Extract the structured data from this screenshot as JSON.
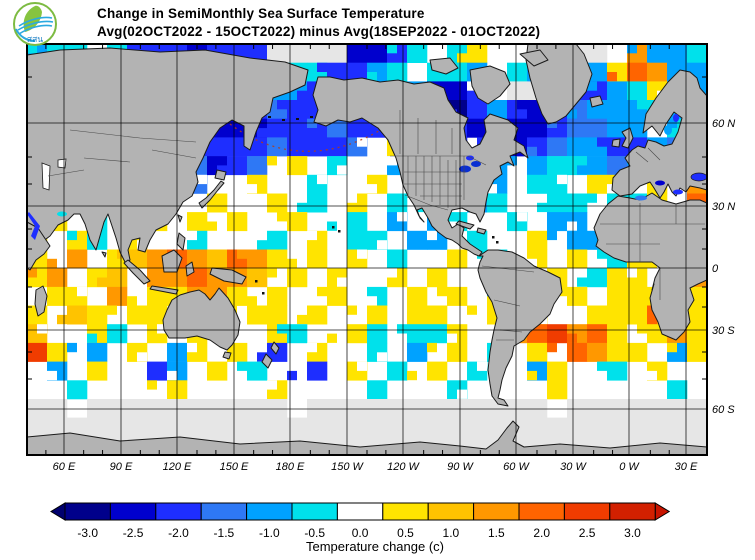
{
  "header": {
    "title_line1": "Change in SemiMonthly Sea Surface Temperature",
    "title_line2": "Avg(02OCT2022 - 15OCT2022) minus Avg(18SEP2022 - 01OCT2022)",
    "logo_text": "สสน"
  },
  "axes": {
    "lat_labels": [
      "60 N",
      "30 N",
      "0",
      "30 S",
      "60 S"
    ],
    "lon_labels": [
      "60 E",
      "90 E",
      "120 E",
      "150 E",
      "180 E",
      "150 W",
      "120 W",
      "90 W",
      "60 W",
      "30 W",
      "0 W",
      "30 E"
    ]
  },
  "colorbar": {
    "tick_labels": [
      "-3.0",
      "-2.5",
      "-2.0",
      "-1.5",
      "-1.0",
      "-0.5",
      "0.0",
      "0.5",
      "1.0",
      "1.5",
      "2.0",
      "2.5",
      "3.0"
    ],
    "caption": "Temperature change  (c)",
    "segment_colors": [
      "#00008B",
      "#0000CD",
      "#1E2EFF",
      "#2E78F5",
      "#00A2FF",
      "#00E1EB",
      "#FFFFFF",
      "#FFE400",
      "#FFC300",
      "#FF9800",
      "#FF6400",
      "#F03C00",
      "#D22000"
    ],
    "left_arrow_color": "#00006E",
    "right_arrow_color": "#C81400"
  },
  "colors": {
    "land": "#B3B3B3",
    "coastline": "#1A1A1A",
    "ocean": "#FFFFFF",
    "polar_no_data": "#E6E6E6",
    "map_border": "#000000",
    "logo_green": "#7DBB42",
    "logo_blue": "#2BA9E0",
    "logo_text_color": "#1B7FC4"
  },
  "chart_data": {
    "type": "heatmap",
    "title": "Change in SemiMonthly Sea Surface Temperature",
    "subtitle": "Avg(02OCT2022 - 15OCT2022) minus Avg(18SEP2022 - 01OCT2022)",
    "units_label": "Temperature change  (c)",
    "projection": "Global cylindrical (Mercator-like), longitude from ~40E eastward 360 degrees, latitude ~75N to ~70S",
    "x_ticks": [
      "60 E",
      "90 E",
      "120 E",
      "150 E",
      "180 E",
      "150 W",
      "120 W",
      "90 W",
      "60 W",
      "30 W",
      "0 W",
      "30 E"
    ],
    "y_ticks": [
      "60 N",
      "30 N",
      "0",
      "30 S",
      "60 S"
    ],
    "colorbar_levels_c": [
      -3.0,
      -2.5,
      -2.0,
      -1.5,
      -1.0,
      -0.5,
      0.0,
      0.5,
      1.0,
      1.5,
      2.0,
      2.5,
      3.0
    ],
    "colorbar_colors": [
      "#00008B",
      "#0000CD",
      "#1E2EFF",
      "#2E78F5",
      "#00A2FF",
      "#00E1EB",
      "#FFFFFF",
      "#FFE400",
      "#FFC300",
      "#FF9800",
      "#FF6400",
      "#F03C00",
      "#D22000"
    ],
    "grid": {
      "cols": 34,
      "rows_count": 22,
      "encoding": "each character is one cell of the anomaly field, west-to-east from ~40E, north-to-south from ~75N; value v is temperature change in deg C; g = no data / ice-covered polar ocean",
      "palette": {
        "0": {
          "c": "#00008B",
          "v": -3.0
        },
        "1": {
          "c": "#0000CD",
          "v": -2.5
        },
        "2": {
          "c": "#1E2EFF",
          "v": -2.0
        },
        "3": {
          "c": "#2E78F5",
          "v": -1.5
        },
        "4": {
          "c": "#00A2FF",
          "v": -1.0
        },
        "5": {
          "c": "#00E1EB",
          "v": -0.5
        },
        ".": {
          "c": "#FFFFFF",
          "v": 0.0
        },
        "7": {
          "c": "#FFE400",
          "v": 0.5
        },
        "8": {
          "c": "#FFC300",
          "v": 1.0
        },
        "9": {
          "c": "#FF9800",
          "v": 1.5
        },
        "a": {
          "c": "#FF6400",
          "v": 2.0
        },
        "b": {
          "c": "#F03C00",
          "v": 2.5
        },
        "c": {
          "c": "#D22000",
          "v": 3.0
        },
        "g": {
          "c": "#E6E6E6",
          "v": null
        }
      },
      "rows": [
        "455.52221222gggg1125.57..gggg.9445",
        "54.5.52445444552245.554.544.47a944",
        ".55..442255444224454112.ggg22457.4",
        "..5..2112222322234421024212344454.",
        ".4...12211112223222322121123344.54",
        "..7..211222232223.7..2.2123442243.",
        ".....1223123.7.5..4..5.4.455433421",
        "7....7.23..7..5..7.554.4.55.77.7.9",
        "99.54.7..7..7.5.7.5.5.45..55.557.a",
        "97.5.77.7.7..7..5.4.45..5.44.977.9",
        "7.75.7..5...5.7.55.44.5..7.44b9.77",
        "7.9.789a98a97.7.7.5..7.5.7.7.57.77",
        "79.78.99a998.7.7..7.7..57.7.577.79",
        ".77.9.77997.7..7.5.7.7.47..7.777.7",
        "7.87.77.99.77.7..7.77..7.7..777a97",
        "8..75.7.7...75..75.557..9ab9a7.797",
        "b7.4.7.47.7.2.7..5.4.7.5.7.a977.47",
        ".4.7..24.7.5..2.7.5.7.5..47..5.7..",
        "..5....7....7....5...5....7.....5.",
        "gg.gggggggggg.gggggggggggg.ggggggg",
        "gggggggggggggggggggggggggggggggggg",
        "gggggggggggggggggggggggggggggggggg"
      ]
    },
    "notable_features": [
      "Strong cooling (-1.5 to -3.0 C) across the North Pacific between ~35N and 60N",
      "Broad cooling (-0.5 to -2.5 C) across the North Atlantic 30N-65N, Hudson Bay, Mediterranean and Black Sea",
      "Cyan band of mild cooling along the equatorial Atlantic and eastern tropical Pacific",
      "Widespread warming (+0.5 to +1.5 C) across subtropics and Southern Hemisphere 10S-45S",
      "Strong warm patches (+2 to +3 C) off Argentina near 40S and south of South Africa",
      "Warm band (+1 to +2 C) around Indonesia and northern Australia; warm Arabian Sea",
      "Orange warm spot in the Barents Sea northeast of Scandinavia",
      "Light gray indicates no data / ice-covered polar oceans near Antarctica and the Arctic"
    ]
  }
}
